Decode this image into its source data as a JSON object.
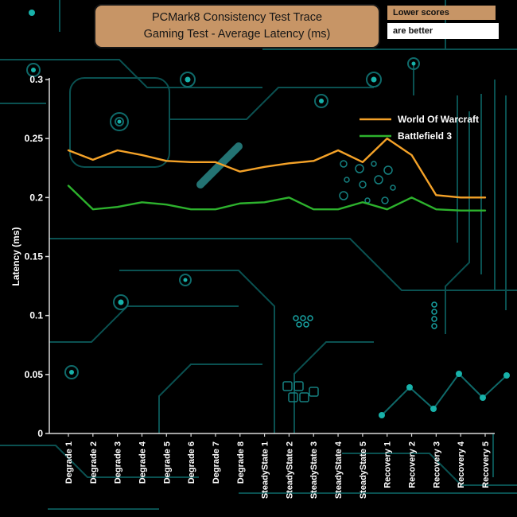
{
  "header": {
    "title_line1": "PCMark8 Consistency Test Trace",
    "title_line2": "Gaming Test -  Average Latency (ms)",
    "note_line1": "Lower scores",
    "note_line2": "are better"
  },
  "colors": {
    "title_bg": "#c79566",
    "note1_bg": "#c79566",
    "note2_bg": "#ffffff",
    "axis": "#d9d9d9",
    "tick_text": "#ffffff",
    "circuit": "#0d5c5c",
    "wow": "#f4a228",
    "bf3": "#2db22d"
  },
  "chart_data": {
    "type": "line",
    "title": "PCMark8 Consistency Test Trace — Gaming Test - Average Latency (ms)",
    "xlabel": "",
    "ylabel": "Latency (ms)",
    "ylim": [
      0,
      0.3
    ],
    "yticks": [
      0,
      0.05,
      0.1,
      0.15,
      0.2,
      0.25,
      0.3
    ],
    "ytick_labels": [
      "0",
      "0.05",
      "0.1",
      "0.15",
      "0.2",
      "0.25",
      "0.3"
    ],
    "grid": false,
    "legend_position": "top-right",
    "categories": [
      "Degrade 1",
      "Degrade 2",
      "Degrade 3",
      "Degrade 4",
      "Degrade 5",
      "Degrade 6",
      "Degrade 7",
      "Degrade 8",
      "SteadyState 1",
      "SteadyState 2",
      "SteadyState 3",
      "SteadyState 4",
      "SteadyState 5",
      "Recovery 1",
      "Recovery 2",
      "Recovery 3",
      "Recovery 4",
      "Recovery 5"
    ],
    "series": [
      {
        "name": "World Of Warcraft",
        "color": "#f4a228",
        "values": [
          0.24,
          0.232,
          0.24,
          0.236,
          0.231,
          0.23,
          0.23,
          0.222,
          0.226,
          0.229,
          0.231,
          0.24,
          0.23,
          0.25,
          0.236,
          0.202,
          0.2,
          0.2
        ]
      },
      {
        "name": "Battlefield 3",
        "color": "#2db22d",
        "values": [
          0.21,
          0.19,
          0.192,
          0.196,
          0.194,
          0.19,
          0.19,
          0.195,
          0.196,
          0.2,
          0.19,
          0.19,
          0.196,
          0.19,
          0.2,
          0.19,
          0.189,
          0.189
        ]
      }
    ]
  }
}
